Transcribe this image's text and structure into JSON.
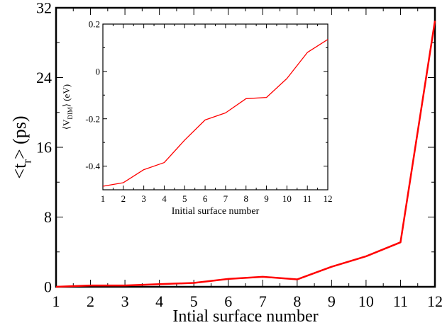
{
  "chart_data": [
    {
      "type": "line",
      "xlabel": "Intial surface number",
      "ylabel_main": "<t",
      "ylabel_sub": "r",
      "ylabel_tail": "> (ps)",
      "xlim": [
        1,
        12
      ],
      "ylim": [
        0,
        32
      ],
      "xticks": [
        "1",
        "2",
        "3",
        "4",
        "5",
        "6",
        "7",
        "8",
        "9",
        "10",
        "11",
        "12"
      ],
      "yticks": [
        "0",
        "8",
        "16",
        "24",
        "32"
      ],
      "grid": false,
      "series": [
        {
          "color": "#ff0000",
          "x": [
            1,
            2,
            3,
            4,
            5,
            6,
            7,
            8,
            9,
            10,
            11,
            12
          ],
          "y": [
            0.0,
            0.15,
            0.15,
            0.3,
            0.45,
            0.9,
            1.15,
            0.85,
            2.3,
            3.5,
            5.1,
            30.5
          ]
        }
      ]
    },
    {
      "type": "line",
      "xlabel": "Initial surface number",
      "ylabel_main": "⟨V",
      "ylabel_sub": "DIM",
      "ylabel_tail": "⟩ (eV)",
      "xlim": [
        1,
        12
      ],
      "ylim": [
        -0.5,
        0.2
      ],
      "xticks": [
        "1",
        "2",
        "3",
        "4",
        "5",
        "6",
        "7",
        "8",
        "9",
        "10",
        "11",
        "12"
      ],
      "yticks": [
        "-0.4",
        "-0.2",
        "0",
        "0.2"
      ],
      "grid": false,
      "series": [
        {
          "color": "#ff0000",
          "x": [
            1,
            2,
            3,
            4,
            5,
            6,
            7,
            8,
            9,
            10,
            11,
            12
          ],
          "y": [
            -0.485,
            -0.47,
            -0.415,
            -0.385,
            -0.29,
            -0.205,
            -0.175,
            -0.115,
            -0.11,
            -0.03,
            0.08,
            0.135
          ]
        }
      ]
    }
  ]
}
